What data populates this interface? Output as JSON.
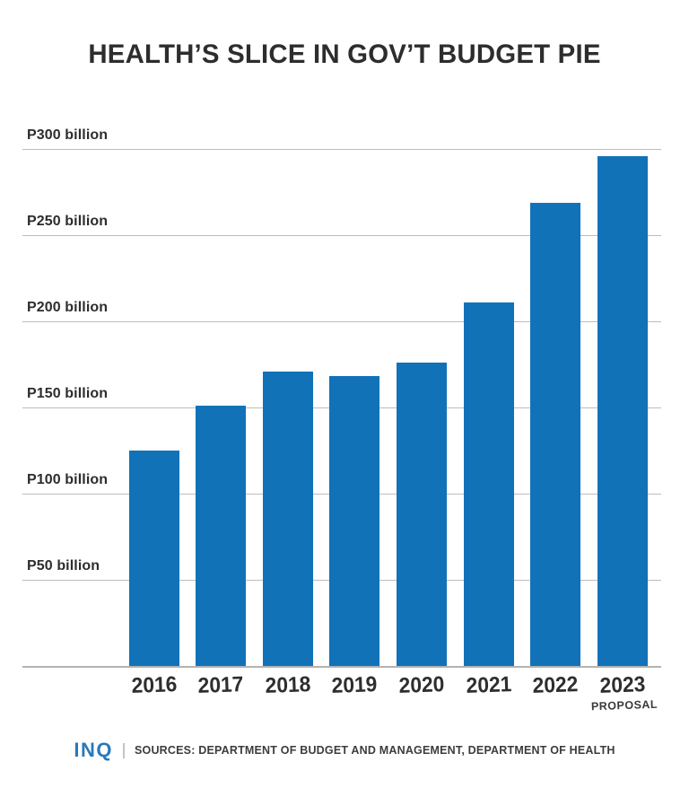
{
  "chart_data": {
    "type": "bar",
    "title": "HEALTH’S SLICE IN GOV’T BUDGET PIE",
    "categories": [
      "2016",
      "2017",
      "2018",
      "2019",
      "2020",
      "2021",
      "2022",
      "2023"
    ],
    "values": [
      125,
      151,
      171,
      168,
      176,
      211,
      269,
      296
    ],
    "unit": "P billion",
    "last_category_note": "PROPOSAL",
    "y_ticks": [
      {
        "value": 300,
        "label": "P300 billion"
      },
      {
        "value": 250,
        "label": "P250 billion"
      },
      {
        "value": 200,
        "label": "P200 billion"
      },
      {
        "value": 150,
        "label": "P150 billion"
      },
      {
        "value": 100,
        "label": "P100 billion"
      },
      {
        "value": 50,
        "label": "P50 billion"
      }
    ],
    "ylim": [
      0,
      300
    ],
    "xlabel": "",
    "ylabel": "",
    "grid": true,
    "legend": false,
    "bar_color": "#1172b8"
  },
  "footer": {
    "logo": "INQ",
    "logo_color": "#2879bb",
    "sources": "SOURCES: DEPARTMENT OF BUDGET AND MANAGEMENT, DEPARTMENT OF HEALTH"
  }
}
